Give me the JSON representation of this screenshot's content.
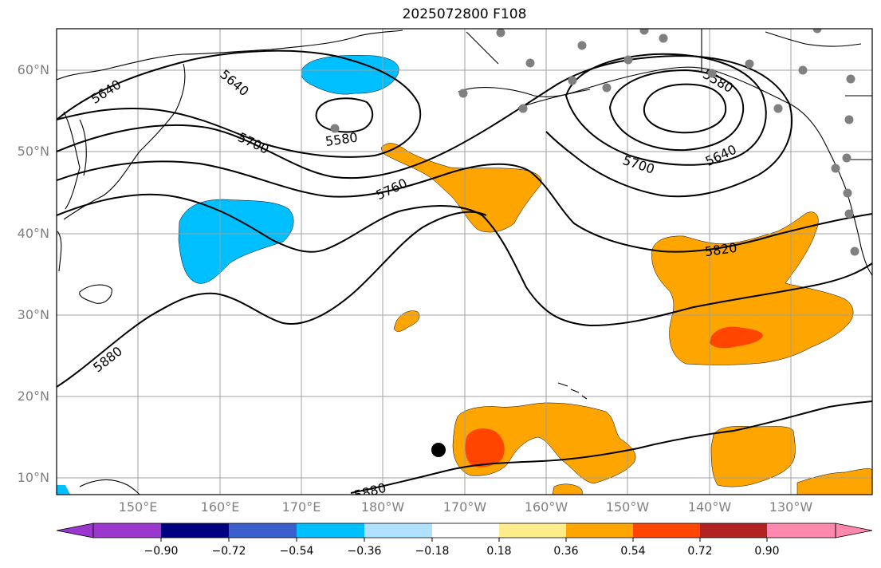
{
  "title": "2025072800 F108",
  "lat_labels": [
    "60°N",
    "50°N",
    "40°N",
    "30°N",
    "20°N",
    "10°N"
  ],
  "lon_labels": [
    "150°E",
    "160°E",
    "170°E",
    "180°W",
    "170°W",
    "160°W",
    "150°W",
    "140°W",
    "130°W"
  ],
  "contour_labels": [
    "5640",
    "5640",
    "5580",
    "5580",
    "5640",
    "5700",
    "5700",
    "5760",
    "5820",
    "5880",
    "5880"
  ],
  "colorbar": {
    "ticks": [
      "−0.90",
      "−0.72",
      "−0.54",
      "−0.36",
      "−0.18",
      "0.18",
      "0.36",
      "0.54",
      "0.72",
      "0.90"
    ],
    "colors": [
      "#9b36cf",
      "#000080",
      "#3a5fcd",
      "#00bfff",
      "#b0e2ff",
      "#ffffff",
      "#ffec8b",
      "#ffa500",
      "#ff4500",
      "#b22222",
      "#ff89ad"
    ]
  },
  "colors": {
    "contour": "#000000",
    "coast": "#000000",
    "grid": "#a0a0a0",
    "station": "#808080",
    "positive": "#ffa500",
    "strong_positive": "#ff4500",
    "negative": "#00bfff"
  }
}
